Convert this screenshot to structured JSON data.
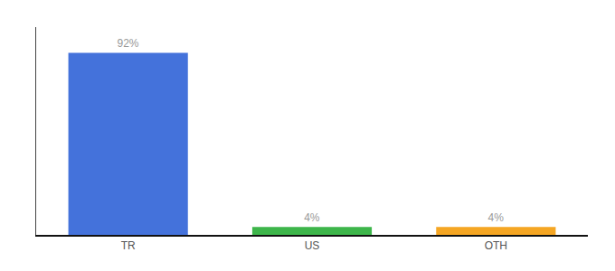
{
  "chart_data": {
    "type": "bar",
    "categories": [
      "TR",
      "US",
      "OTH"
    ],
    "values": [
      92,
      4,
      4
    ],
    "value_labels": [
      "92%",
      "4%",
      "4%"
    ],
    "data_labels": true,
    "colors": [
      "#4472db",
      "#3db54a",
      "#f5a623"
    ],
    "ylim": [
      0,
      105
    ],
    "tick_labels": "x",
    "grid": false
  }
}
